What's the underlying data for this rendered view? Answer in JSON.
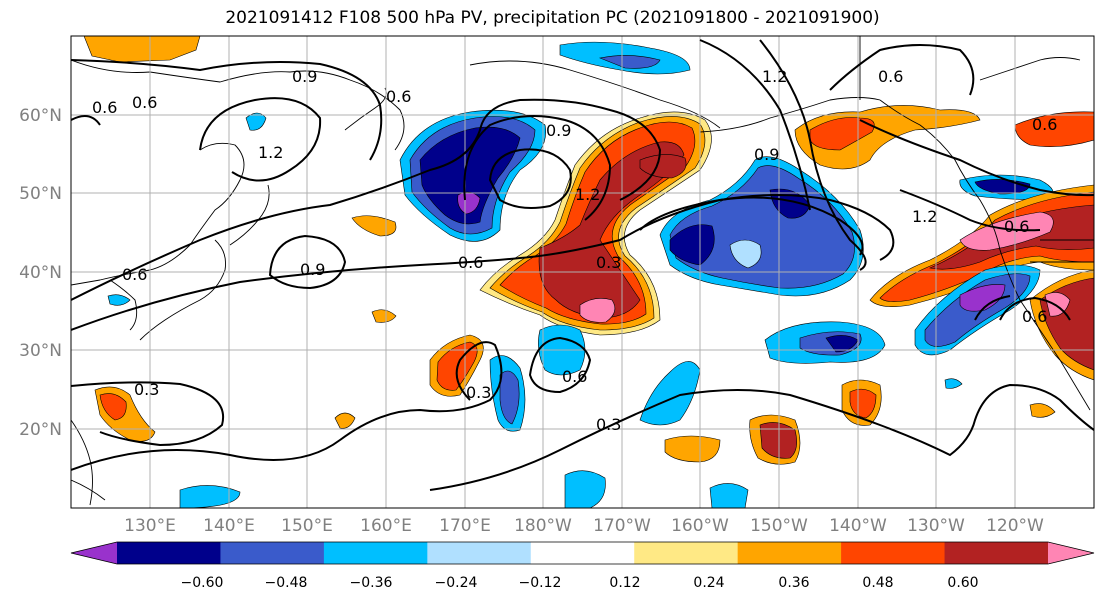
{
  "title": "2021091412 F108 500 hPa PV, precipitation PC (2021091800 - 2021091900)",
  "map": {
    "lat_labels": [
      "60°N",
      "50°N",
      "40°N",
      "30°N",
      "20°N"
    ],
    "lon_labels": [
      "130°E",
      "140°E",
      "150°E",
      "160°E",
      "170°E",
      "180°W",
      "170°W",
      "160°W",
      "150°W",
      "140°W",
      "130°W",
      "120°W"
    ],
    "contour_labels": [
      "0.9",
      "0.6",
      "0.6",
      "1.2",
      "0.6",
      "1.2",
      "0.9",
      "0.6",
      "0.9",
      "0.6",
      "1.2",
      "0.9",
      "0.3",
      "0.6",
      "0.3",
      "0.3",
      "1.2",
      "0.6",
      "0.6",
      "0.6",
      "0.3",
      "0.6"
    ],
    "label_color": "#808080"
  },
  "colorbar": {
    "ticks": [
      "−0.60",
      "−0.48",
      "−0.36",
      "−0.24",
      "−0.12",
      "0.12",
      "0.24",
      "0.36",
      "0.48",
      "0.60"
    ],
    "colors": [
      "#9932CC",
      "#00008B",
      "#3A5BCB",
      "#00BFFF",
      "#B0E0FF",
      "#FFFFFF",
      "#FFE985",
      "#FFA500",
      "#FF4500",
      "#B22222",
      "#FF85B4"
    ]
  }
}
